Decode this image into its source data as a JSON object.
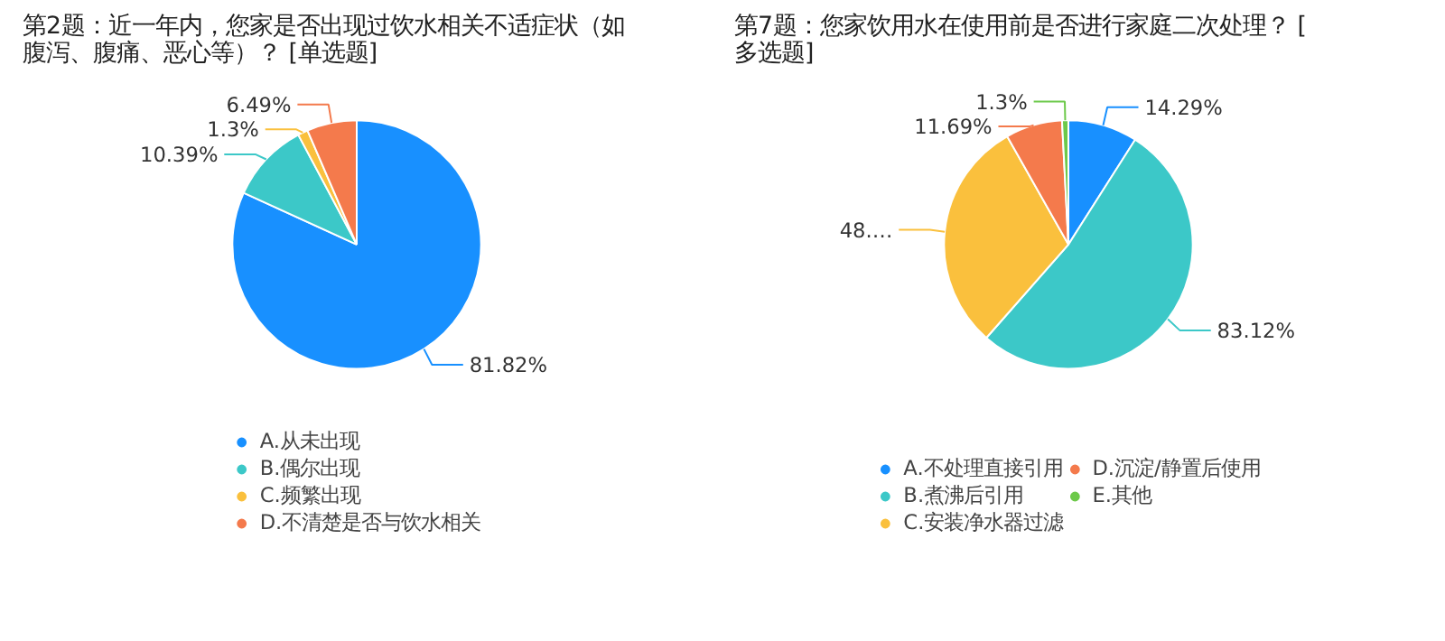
{
  "chart_data": [
    {
      "type": "pie",
      "title": "第2题：近一年内，您家是否出现过饮水相关不适症状（如腹泻、腹痛、恶心等）？ [单选题]",
      "categories": [
        "A.从未出现",
        "B.偶尔出现",
        "C.频繁出现",
        "D.不清楚是否与饮水相关"
      ],
      "values": [
        81.82,
        10.39,
        1.3,
        6.49
      ],
      "colors": [
        "#1890ff",
        "#3cc8c8",
        "#fac03d",
        "#f47a4c"
      ],
      "value_labels": [
        "81.82%",
        "10.39%",
        "1.3%",
        "6.49%"
      ],
      "legend": "bottom"
    },
    {
      "type": "pie",
      "title": "第7题：您家饮用水在使用前是否进行家庭二次处理？ [多选题]",
      "categories": [
        "A.不处理直接引用",
        "B.煮沸后引用",
        "C.安装净水器过滤",
        "D.沉淀/静置后使用",
        "E.其他"
      ],
      "values": [
        14.29,
        83.12,
        48.05,
        11.69,
        1.3
      ],
      "colors": [
        "#1890ff",
        "#3cc8c8",
        "#fac03d",
        "#f47a4c",
        "#6dc94a"
      ],
      "value_labels": [
        "14.29%",
        "83.12%",
        "48.…",
        "11.69%",
        "1.3%"
      ],
      "legend": "bottom"
    }
  ]
}
